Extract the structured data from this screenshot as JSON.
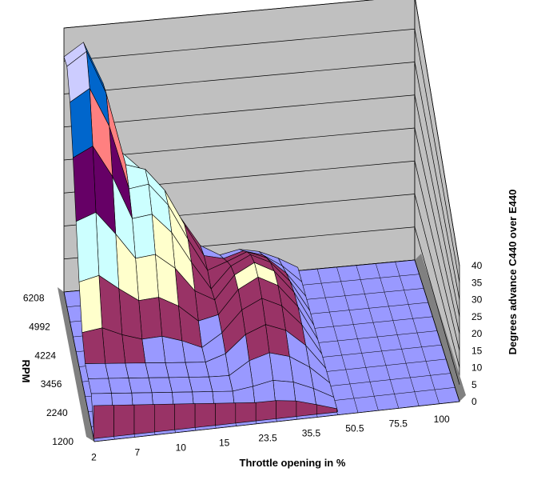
{
  "chart_data": {
    "type": "surface3d",
    "x_label": "Throttle opening in %",
    "y_label": "RPM",
    "z_label": "Degrees advance C440 over E440",
    "x_ticks": [
      "2",
      "7",
      "10",
      "15",
      "23.5",
      "35.5",
      "50.5",
      "75.5",
      "100"
    ],
    "y_ticks": [
      "1200",
      "2240",
      "3456",
      "4224",
      "4992",
      "6208"
    ],
    "z_ticks": [
      "0",
      "5",
      "10",
      "15",
      "20",
      "25",
      "30",
      "35",
      "40"
    ],
    "z_range": [
      0,
      40
    ],
    "x_grid_count": 18,
    "y_grid_count": 10,
    "band_colors": [
      "#9999ff",
      "#993366",
      "#ffffcc",
      "#ccffff",
      "#660066",
      "#ff8080",
      "#0066cc",
      "#ccccff"
    ],
    "wall_color": "#c0c0c0",
    "floor_color": "#9999ff",
    "peak_value": 39,
    "second_peak_value": 30,
    "peak_region": "low throttle, high RPM"
  }
}
